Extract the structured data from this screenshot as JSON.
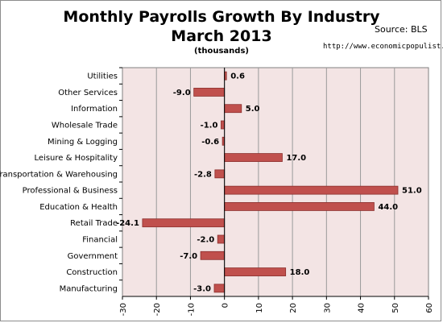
{
  "header": {
    "title": "Monthly Payrolls Growth By Industry",
    "subtitle": "March 2013",
    "units": "(thousands)",
    "source": "Source:  BLS",
    "url": "http://www.economicpopulist.org"
  },
  "chart_data": {
    "type": "bar",
    "orientation": "horizontal",
    "title": "Monthly Payrolls Growth By Industry",
    "subtitle": "March 2013",
    "units": "(thousands)",
    "categories": [
      "Utilities",
      "Other Services",
      "Information",
      "Wholesale Trade",
      "Mining & Logging",
      "Leisure & Hospitality",
      "Transportation & Warehousing",
      "Professional & Business",
      "Education & Health",
      "Retail Trade",
      "Financial",
      "Government",
      "Construction",
      "Manufacturing"
    ],
    "values": [
      0.6,
      -9.0,
      5.0,
      -1.0,
      -0.6,
      17.0,
      -2.8,
      51.0,
      44.0,
      -24.1,
      -2.0,
      -7.0,
      18.0,
      -3.0
    ],
    "value_labels": [
      "0.6",
      "-9.0",
      "5.0",
      "-1.0",
      "-0.6",
      "17.0",
      "-2.8",
      "51.0",
      "44.0",
      "-24.1",
      "-2.0",
      "-7.0",
      "18.0",
      "-3.0"
    ],
    "xlim": [
      -30,
      60
    ],
    "xticks": [
      -30,
      -20,
      -10,
      0,
      10,
      20,
      30,
      40,
      50,
      60
    ],
    "grid": true,
    "legend": "none",
    "colors": {
      "bar": "#c0504d",
      "bar_stroke": "#8b2e2c",
      "plot_bg": "#f3e4e4",
      "grid": "#9a9a9a"
    }
  }
}
